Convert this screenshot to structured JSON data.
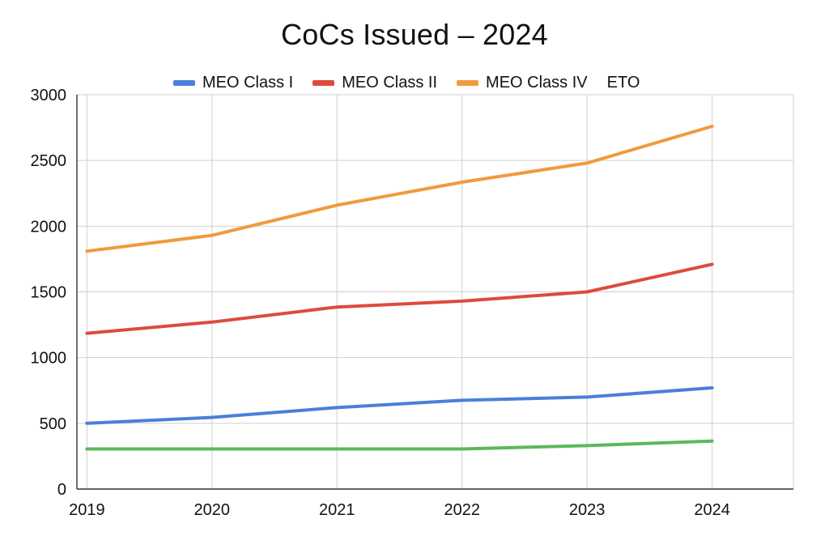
{
  "chart_data": {
    "type": "line",
    "title": "CoCs Issued – 2024",
    "x": [
      2019,
      2020,
      2021,
      2022,
      2023,
      2024
    ],
    "x_tick_labels": [
      "2019",
      "2020",
      "2021",
      "2022",
      "2023",
      "2024"
    ],
    "xlabel": "",
    "ylabel": "",
    "ylim": [
      0,
      3000
    ],
    "y_ticks": [
      0,
      500,
      1000,
      1500,
      2000,
      2500,
      3000
    ],
    "grid": true,
    "legend_position": "top",
    "series": [
      {
        "name": "MEO Class I",
        "color": "#4a7fdc",
        "values": [
          500,
          545,
          620,
          675,
          700,
          770
        ]
      },
      {
        "name": "MEO Class II",
        "color": "#dd4b3e",
        "values": [
          1185,
          1270,
          1385,
          1430,
          1500,
          1710
        ]
      },
      {
        "name": "MEO Class IV",
        "color": "#f09a3e",
        "values": [
          1810,
          1930,
          2160,
          2335,
          2480,
          2760
        ]
      },
      {
        "name": "ETO",
        "color": "#5cb85c",
        "values": [
          305,
          305,
          305,
          305,
          330,
          365
        ]
      }
    ]
  }
}
